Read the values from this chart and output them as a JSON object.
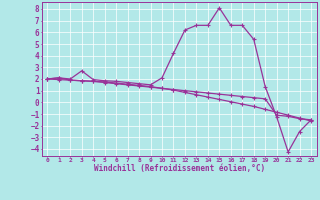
{
  "xlabel": "Windchill (Refroidissement éolien,°C)",
  "background_color": "#b2e8e8",
  "grid_color": "#ffffff",
  "line_color": "#993399",
  "xlim": [
    -0.5,
    23.5
  ],
  "ylim": [
    -4.6,
    8.6
  ],
  "xticks": [
    0,
    1,
    2,
    3,
    4,
    5,
    6,
    7,
    8,
    9,
    10,
    11,
    12,
    13,
    14,
    15,
    16,
    17,
    18,
    19,
    20,
    21,
    22,
    23
  ],
  "yticks": [
    -4,
    -3,
    -2,
    -1,
    0,
    1,
    2,
    3,
    4,
    5,
    6,
    7,
    8
  ],
  "line1_x": [
    0,
    1,
    2,
    3,
    4,
    5,
    6,
    7,
    8,
    9,
    10,
    11,
    12,
    13,
    14,
    15,
    16,
    17,
    18,
    19,
    20,
    21,
    22,
    23
  ],
  "line1_y": [
    2.0,
    1.95,
    1.9,
    1.85,
    1.8,
    1.75,
    1.65,
    1.55,
    1.45,
    1.35,
    1.2,
    1.05,
    0.85,
    0.65,
    0.45,
    0.25,
    0.05,
    -0.15,
    -0.35,
    -0.6,
    -0.85,
    -1.1,
    -1.35,
    -1.6
  ],
  "line2_x": [
    0,
    1,
    2,
    3,
    4,
    5,
    6,
    7,
    8,
    9,
    10,
    11,
    12,
    13,
    14,
    15,
    16,
    17,
    18,
    19,
    20,
    21,
    22,
    23
  ],
  "line2_y": [
    2.0,
    2.1,
    2.0,
    2.7,
    1.95,
    1.85,
    1.8,
    1.7,
    1.6,
    1.5,
    2.1,
    4.2,
    6.2,
    6.6,
    6.6,
    8.1,
    6.6,
    6.6,
    5.4,
    1.35,
    -1.25,
    -4.25,
    -2.5,
    -1.5
  ],
  "line3_x": [
    0,
    1,
    2,
    3,
    4,
    5,
    6,
    7,
    8,
    9,
    10,
    11,
    12,
    13,
    14,
    15,
    16,
    17,
    18,
    19,
    20,
    21,
    22,
    23
  ],
  "line3_y": [
    2.0,
    2.1,
    1.9,
    1.85,
    1.8,
    1.7,
    1.6,
    1.5,
    1.4,
    1.3,
    1.2,
    1.1,
    1.0,
    0.9,
    0.8,
    0.7,
    0.6,
    0.5,
    0.4,
    0.3,
    -1.1,
    -1.2,
    -1.4,
    -1.5
  ]
}
